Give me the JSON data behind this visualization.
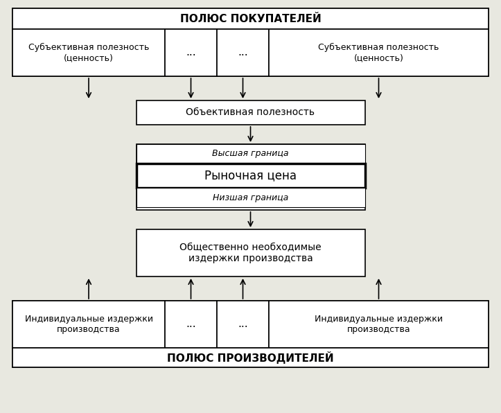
{
  "bg_color": "#e8e8e0",
  "box_color": "#ffffff",
  "border_color": "#000000",
  "top_pole_text": "ПОЛЮС ПОКУПАТЕЛЕЙ",
  "bottom_pole_text": "ПОЛЮС ПРОИЗВОДИТЕЛЕЙ",
  "subj_utility_text": "Субъективная полезность\n(ценность)",
  "obj_utility_text": "Объективная полезность",
  "higher_border_text": "Высшая граница",
  "market_price_text": "Рыночная цена",
  "lower_border_text": "Низшая граница",
  "social_costs_text": "Общественно необходимые\nиздержки производства",
  "indiv_costs_text": "Индивидуальные издержки\nпроизводства",
  "dots": "...",
  "fig_w": 7.23,
  "fig_h": 5.96,
  "dpi": 100
}
